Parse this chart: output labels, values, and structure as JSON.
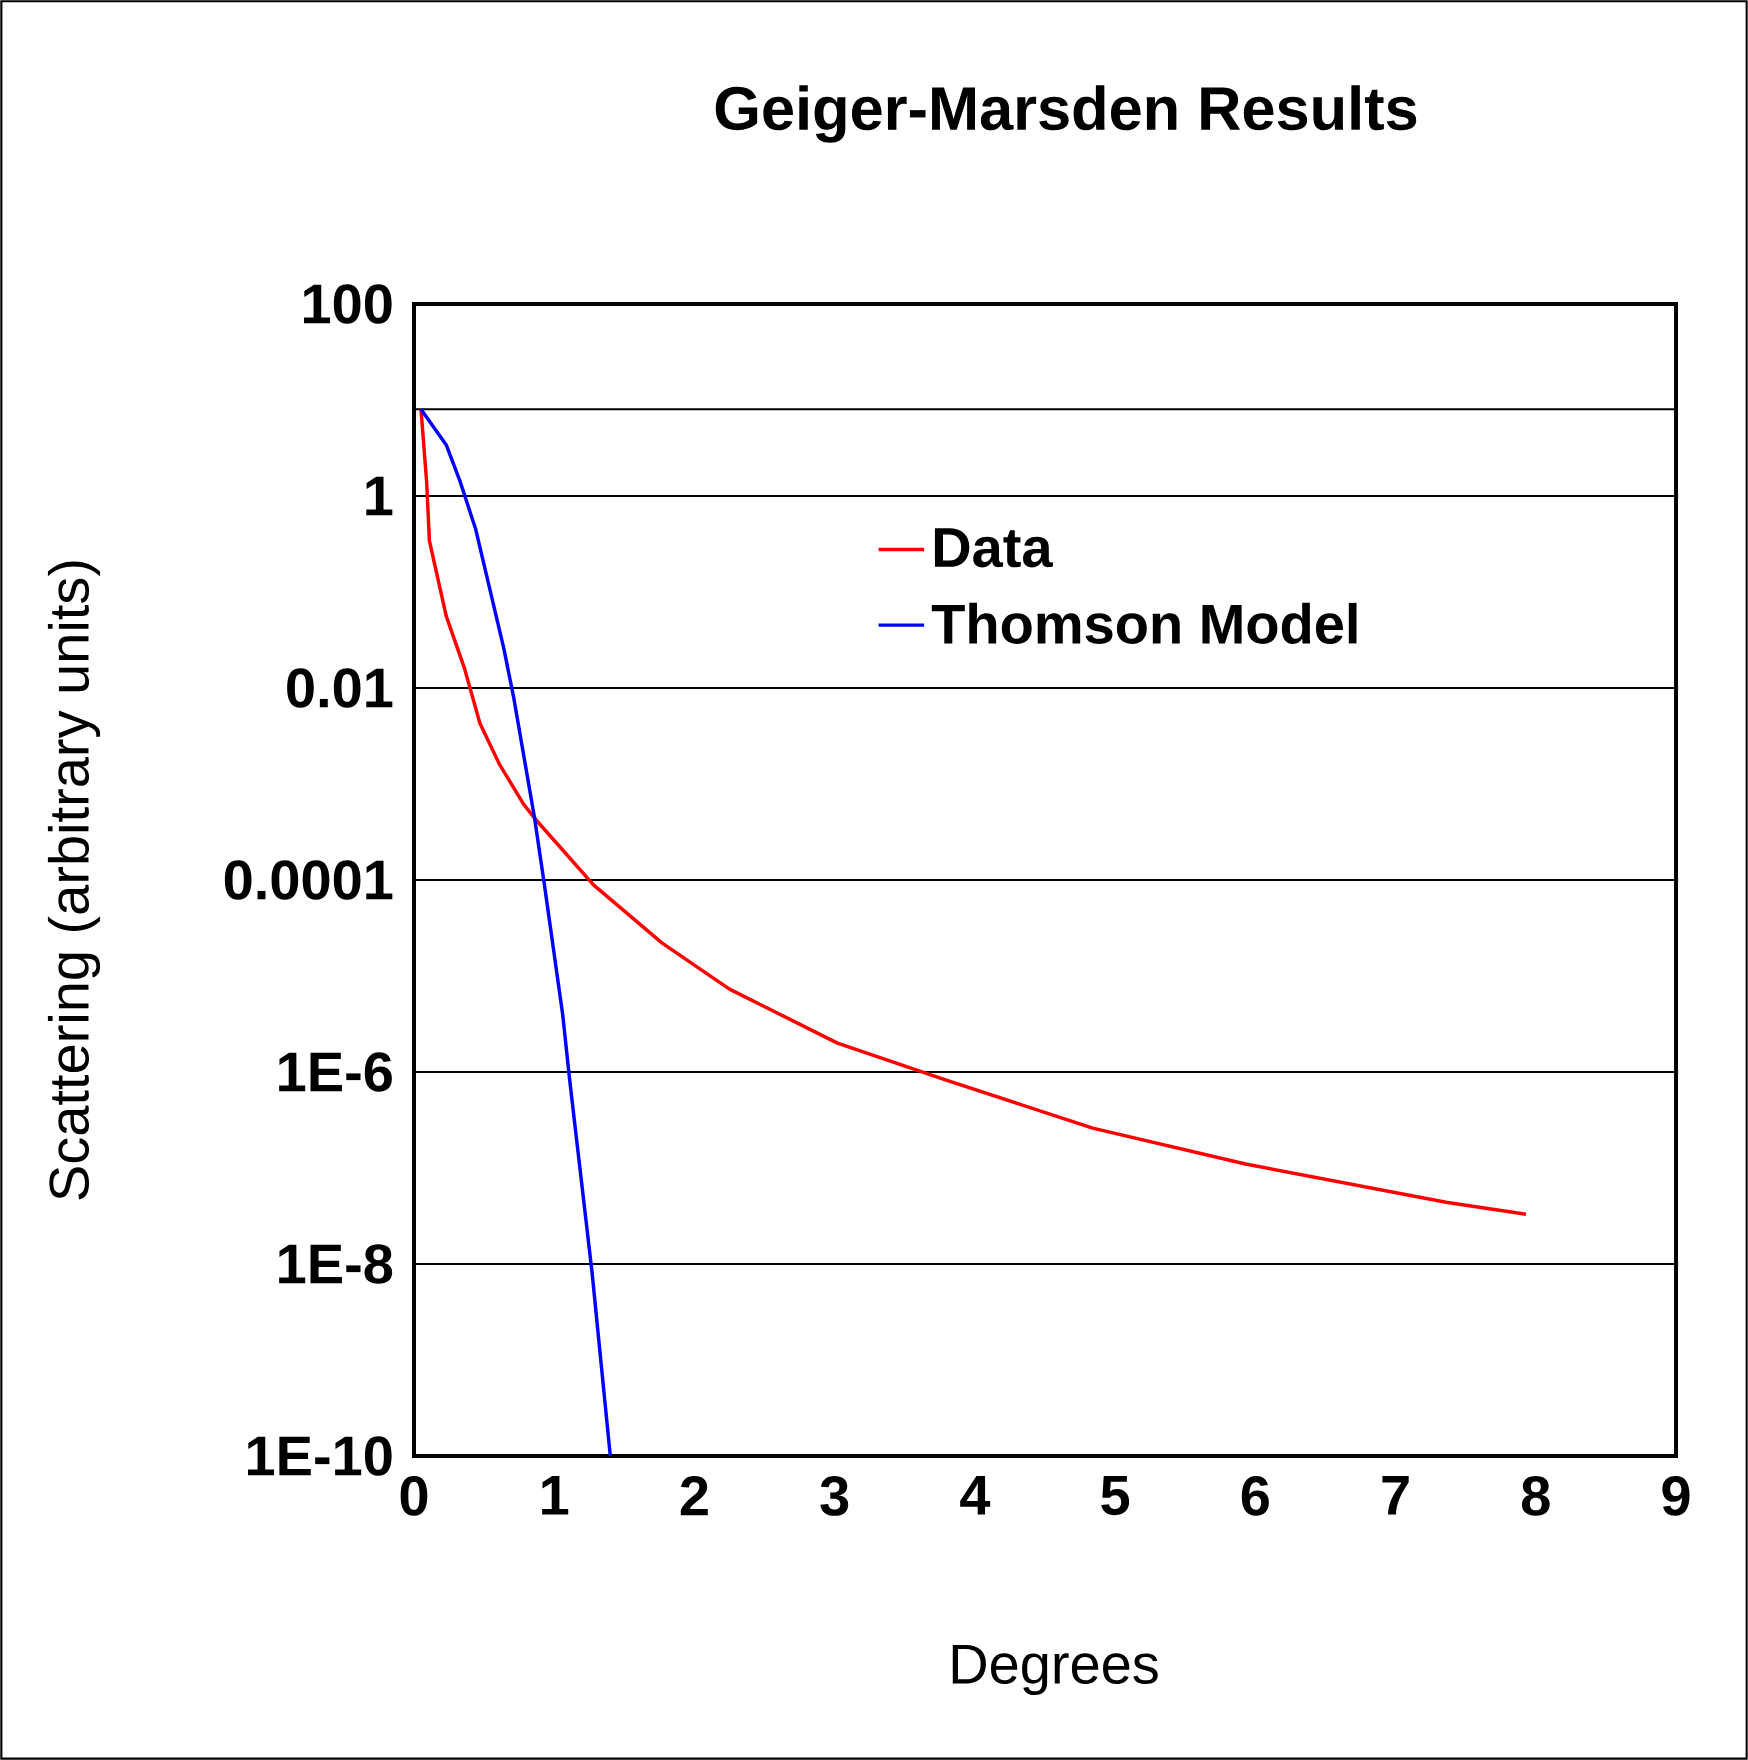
{
  "chart_data": {
    "type": "line",
    "title": "Geiger-Marsden Results",
    "xlabel": "Degrees",
    "ylabel": "Scattering (arbitrary units)",
    "log": "y",
    "grid": "y",
    "legend": "top right",
    "marker": "none",
    "line_style": "solid",
    "xlim": [
      0,
      9
    ],
    "xticks": [
      0,
      1,
      2,
      3,
      4,
      5,
      6,
      7,
      8,
      9
    ],
    "ylim": [
      1e-10,
      100
    ],
    "yticks": [
      {
        "value": 1e-10,
        "label": "1E-10"
      },
      {
        "value": 1e-08,
        "label": "1E-8"
      },
      {
        "value": 1e-06,
        "label": "1E-6"
      },
      0.0001,
      0.01,
      1,
      100
    ],
    "ref_lines": [
      {
        "axis": "y",
        "value": 8,
        "color": "#000000"
      }
    ],
    "series": [
      {
        "name": "Data",
        "color": "#ff0000",
        "x": [
          0.05,
          0.09,
          0.11,
          0.23,
          0.36,
          0.47,
          0.61,
          0.78,
          0.86,
          1.28,
          1.77,
          2.25,
          3.02,
          3.79,
          4.84,
          5.93,
          7.36,
          7.93
        ],
        "values": [
          8,
          1.4,
          0.34,
          0.056,
          0.016,
          0.0043,
          0.0016,
          0.00062,
          0.00044,
          8.9e-05,
          2.2e-05,
          7.3e-06,
          2e-06,
          8.3e-07,
          2.6e-07,
          1.1e-07,
          4.4e-08,
          3.3e-08
        ]
      },
      {
        "name": "Thomson Model",
        "color": "#0000ff",
        "x": [
          0.05,
          0.23,
          0.33,
          0.44,
          0.64,
          0.71,
          0.86,
          0.93,
          1.06,
          1.11,
          1.27,
          1.4
        ],
        "values": [
          8,
          3.4,
          1.4,
          0.45,
          0.026,
          0.0081,
          0.00044,
          8.9e-05,
          4e-06,
          8.3e-07,
          8.1e-09,
          1e-10
        ]
      }
    ]
  }
}
